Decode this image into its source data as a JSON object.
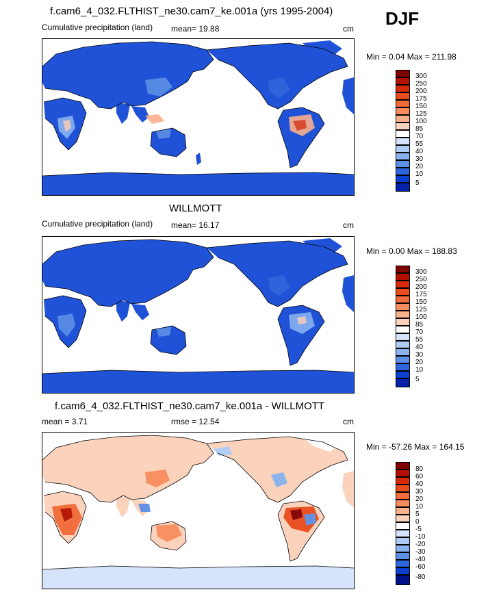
{
  "season": "DJF",
  "panels": [
    {
      "title": "f.cam6_4_032.FLTHIST_ne30.cam7_ke.001a (yrs 1995-2004)",
      "left_label": "Cumulative precipitation (land)",
      "stat_label": "mean=  19.88",
      "units": "cm",
      "minmax": "Min =   0.04 Max = 211.98",
      "colorbar_ticks": [
        "300",
        "250",
        "200",
        "175",
        "150",
        "125",
        "100",
        "85",
        "70",
        "55",
        "40",
        "30",
        "20",
        "10",
        "5"
      ],
      "colorbar_colors": [
        "#7f0000",
        "#b41000",
        "#d62a08",
        "#ea4c1e",
        "#f26b3a",
        "#f78d5e",
        "#f9b08c",
        "#fbd2bb",
        "#ffffff",
        "#d6e4fb",
        "#aecdf6",
        "#88b2f0",
        "#5c8fe6",
        "#2f66dd",
        "#0b3fd0",
        "#0022a8",
        "#00118a"
      ]
    },
    {
      "title": "WILLMOTT",
      "left_label": "Cumulative precipitation (land)",
      "stat_label": "mean=  16.17",
      "units": "cm",
      "minmax": "Min =   0.00 Max = 188.83",
      "colorbar_ticks": [
        "300",
        "250",
        "200",
        "175",
        "150",
        "125",
        "100",
        "85",
        "70",
        "55",
        "40",
        "30",
        "20",
        "10",
        "5"
      ],
      "colorbar_colors": [
        "#7f0000",
        "#b41000",
        "#d62a08",
        "#ea4c1e",
        "#f26b3a",
        "#f78d5e",
        "#f9b08c",
        "#fbd2bb",
        "#ffffff",
        "#d6e4fb",
        "#aecdf6",
        "#88b2f0",
        "#5c8fe6",
        "#2f66dd",
        "#0b3fd0",
        "#0022a8",
        "#00118a"
      ]
    },
    {
      "title": "f.cam6_4_032.FLTHIST_ne30.cam7_ke.001a - WILLMOTT",
      "left_label": "mean =   3.71",
      "stat_label": "rmse =  12.54",
      "units": "cm",
      "minmax": "Min = -57.26 Max = 164.15",
      "colorbar_ticks": [
        "80",
        "60",
        "40",
        "30",
        "20",
        "10",
        "5",
        "0",
        "-5",
        "-10",
        "-20",
        "-30",
        "-40",
        "-60",
        "-80"
      ],
      "colorbar_colors": [
        "#7f0000",
        "#b41000",
        "#d62a08",
        "#ea4c1e",
        "#f26b3a",
        "#f78d5e",
        "#f9b08c",
        "#fbd2bb",
        "#ffffff",
        "#d6e4fb",
        "#aecdf6",
        "#88b2f0",
        "#5c8fe6",
        "#2f66dd",
        "#0b3fd0",
        "#0022a8",
        "#00118a"
      ]
    }
  ],
  "chart_data": [
    {
      "type": "heatmap",
      "title": "f.cam6_4_032.FLTHIST_ne30.cam7_ke.001a (yrs 1995-2004)",
      "subtitle": "Cumulative precipitation (land)",
      "season": "DJF",
      "units": "cm",
      "mean": 19.88,
      "min": 0.04,
      "max": 211.98,
      "levels": [
        5,
        10,
        20,
        30,
        40,
        55,
        70,
        85,
        100,
        125,
        150,
        175,
        200,
        250,
        300
      ]
    },
    {
      "type": "heatmap",
      "title": "WILLMOTT",
      "subtitle": "Cumulative precipitation (land)",
      "season": "DJF",
      "units": "cm",
      "mean": 16.17,
      "min": 0.0,
      "max": 188.83,
      "levels": [
        5,
        10,
        20,
        30,
        40,
        55,
        70,
        85,
        100,
        125,
        150,
        175,
        200,
        250,
        300
      ]
    },
    {
      "type": "heatmap",
      "title": "f.cam6_4_032.FLTHIST_ne30.cam7_ke.001a - WILLMOTT",
      "season": "DJF",
      "units": "cm",
      "mean": 3.71,
      "rmse": 12.54,
      "min": -57.26,
      "max": 164.15,
      "levels": [
        -80,
        -60,
        -40,
        -30,
        -20,
        -10,
        -5,
        0,
        5,
        10,
        20,
        30,
        40,
        60,
        80
      ]
    }
  ]
}
